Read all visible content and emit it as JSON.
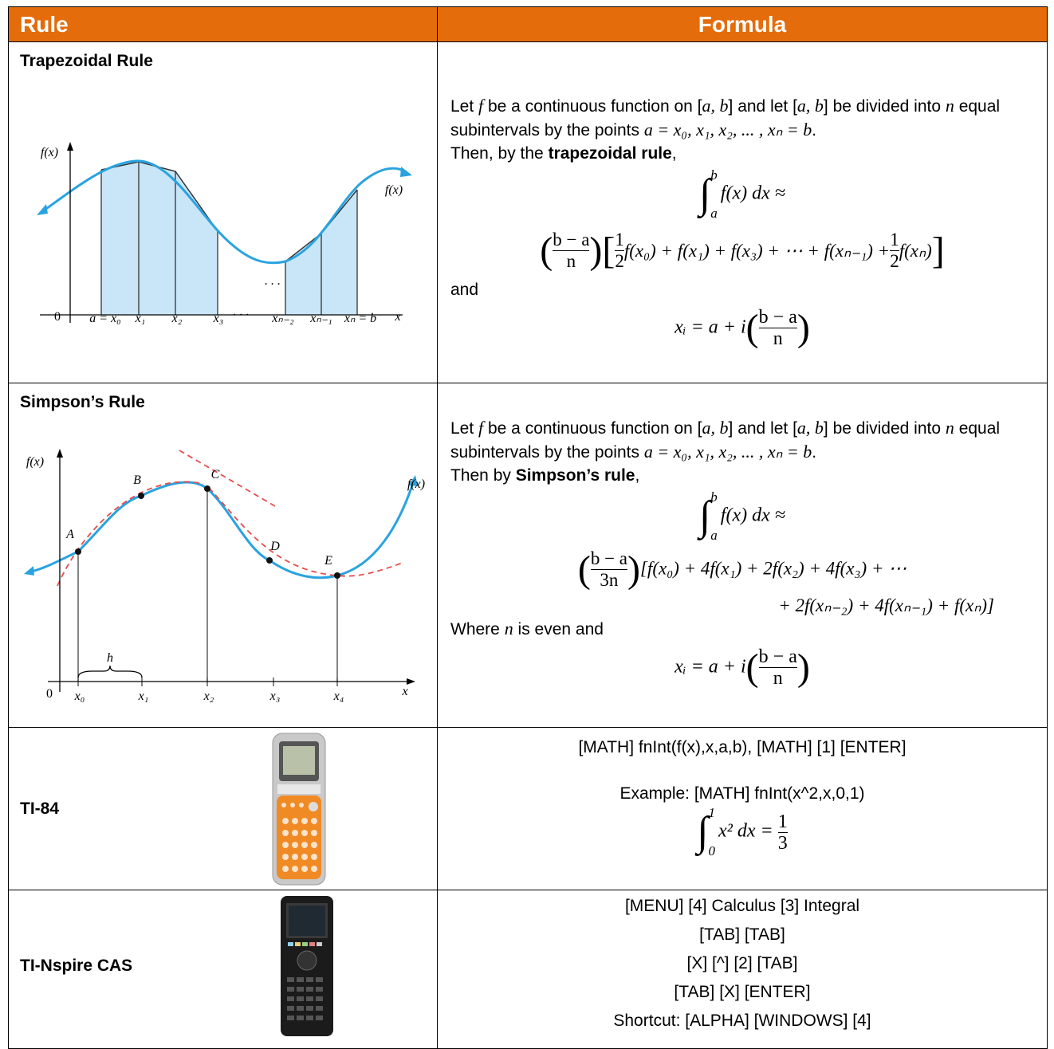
{
  "table": {
    "header": {
      "rule": "Rule",
      "formula": "Formula"
    },
    "rows": [
      {
        "rule": "Trapezoidal Rule",
        "figure_labels": [
          "f(x)",
          "f(x)",
          "0",
          "a = x₀",
          "x₁",
          "x₂",
          "x₃",
          "· · ·",
          "xₙ₋₂",
          "xₙ₋₁",
          "xₙ = b",
          "x",
          ". . ."
        ],
        "formula": {
          "intro": [
            "Let ",
            "f",
            " be a continuous function on [",
            "a, b",
            "] and let [",
            "a, b",
            "] be divided into ",
            "n",
            " equal subintervals by the points ",
            "a = x₀, x₁, x₂, ... , xₙ = b",
            "."
          ],
          "lead": [
            "Then, by the ",
            "trapezoidal rule",
            ","
          ],
          "integral": [
            {
              "symbol": "∫",
              "lower": "a",
              "upper": "b"
            },
            "f(x) dx ≈"
          ],
          "approx": [
            [
              {
                "open": "(",
                "close": ")",
                "body": [
                  {
                    "num": "b − a",
                    "den": "n"
                  }
                ]
              },
              {
                "open": "[",
                "close": "]",
                "body": [
                  {
                    "num": "1",
                    "den": "2"
                  },
                  "f(x₀) + f(x₁) + f(x₃) + ⋯ + f(xₙ₋₁) + ",
                  {
                    "num": "1",
                    "den": "2"
                  },
                  "f(xₙ)"
                ]
              }
            ]
          ],
          "connector": [
            "and"
          ],
          "xi": [
            "xᵢ = a + i",
            {
              "open": "(",
              "close": ")",
              "body": [
                {
                  "num": "b − a",
                  "den": "n"
                }
              ]
            }
          ]
        }
      },
      {
        "rule": "Simpson’s Rule",
        "figure_labels": [
          "f(x)",
          "f(x)",
          "0",
          "h",
          "A",
          "B",
          "C",
          "D",
          "E",
          "x₀",
          "x₁",
          "x₂",
          "x₃",
          "x₄",
          "x"
        ],
        "formula": {
          "intro": [
            "Let ",
            "f",
            " be a continuous function on [",
            "a, b",
            "] and let [",
            "a, b",
            "] be divided into ",
            "n",
            " equal subintervals by the points ",
            "a = x₀, x₁, x₂, ... , xₙ = b",
            "."
          ],
          "lead": [
            "Then by ",
            "Simpson’s rule",
            ","
          ],
          "integral": [
            {
              "symbol": "∫",
              "lower": "a",
              "upper": "b"
            },
            "f(x) dx ≈"
          ],
          "approx": [
            [
              {
                "open": "(",
                "close": ")",
                "body": [
                  {
                    "num": "b − a",
                    "den": "3n"
                  }
                ]
              },
              "[f(x₀) + 4f(x₁) + 2f(x₂) + 4f(x₃) + ⋯"
            ],
            [
              "+ 2f(xₙ₋₂) + 4f(xₙ₋₁) + f(xₙ)]"
            ]
          ],
          "connector": [
            "Where ",
            "n",
            " is even and"
          ],
          "xi": [
            "xᵢ = a + i",
            {
              "open": "(",
              "close": ")",
              "body": [
                {
                  "num": "b − a",
                  "den": "n"
                }
              ]
            }
          ]
        }
      },
      {
        "rule": "TI-84",
        "instructions": [
          "[MATH] fnInt(f(x),x,a,b), [MATH] [1] [ENTER]",
          "Example:  [MATH] fnInt(x^2,x,0,1)"
        ],
        "example": [
          {
            "symbol": "∫",
            "lower": "0",
            "upper": "1"
          },
          "x² dx = ",
          {
            "num": "1",
            "den": "3"
          }
        ]
      },
      {
        "rule": "TI-Nspire CAS",
        "instructions": [
          "[MENU] [4] Calculus [3] Integral",
          "[TAB] [TAB]",
          "[X] [^] [2] [TAB]",
          "[TAB] [X] [ENTER]",
          "Shortcut: [ALPHA] [WINDOWS] [4]"
        ]
      }
    ]
  }
}
